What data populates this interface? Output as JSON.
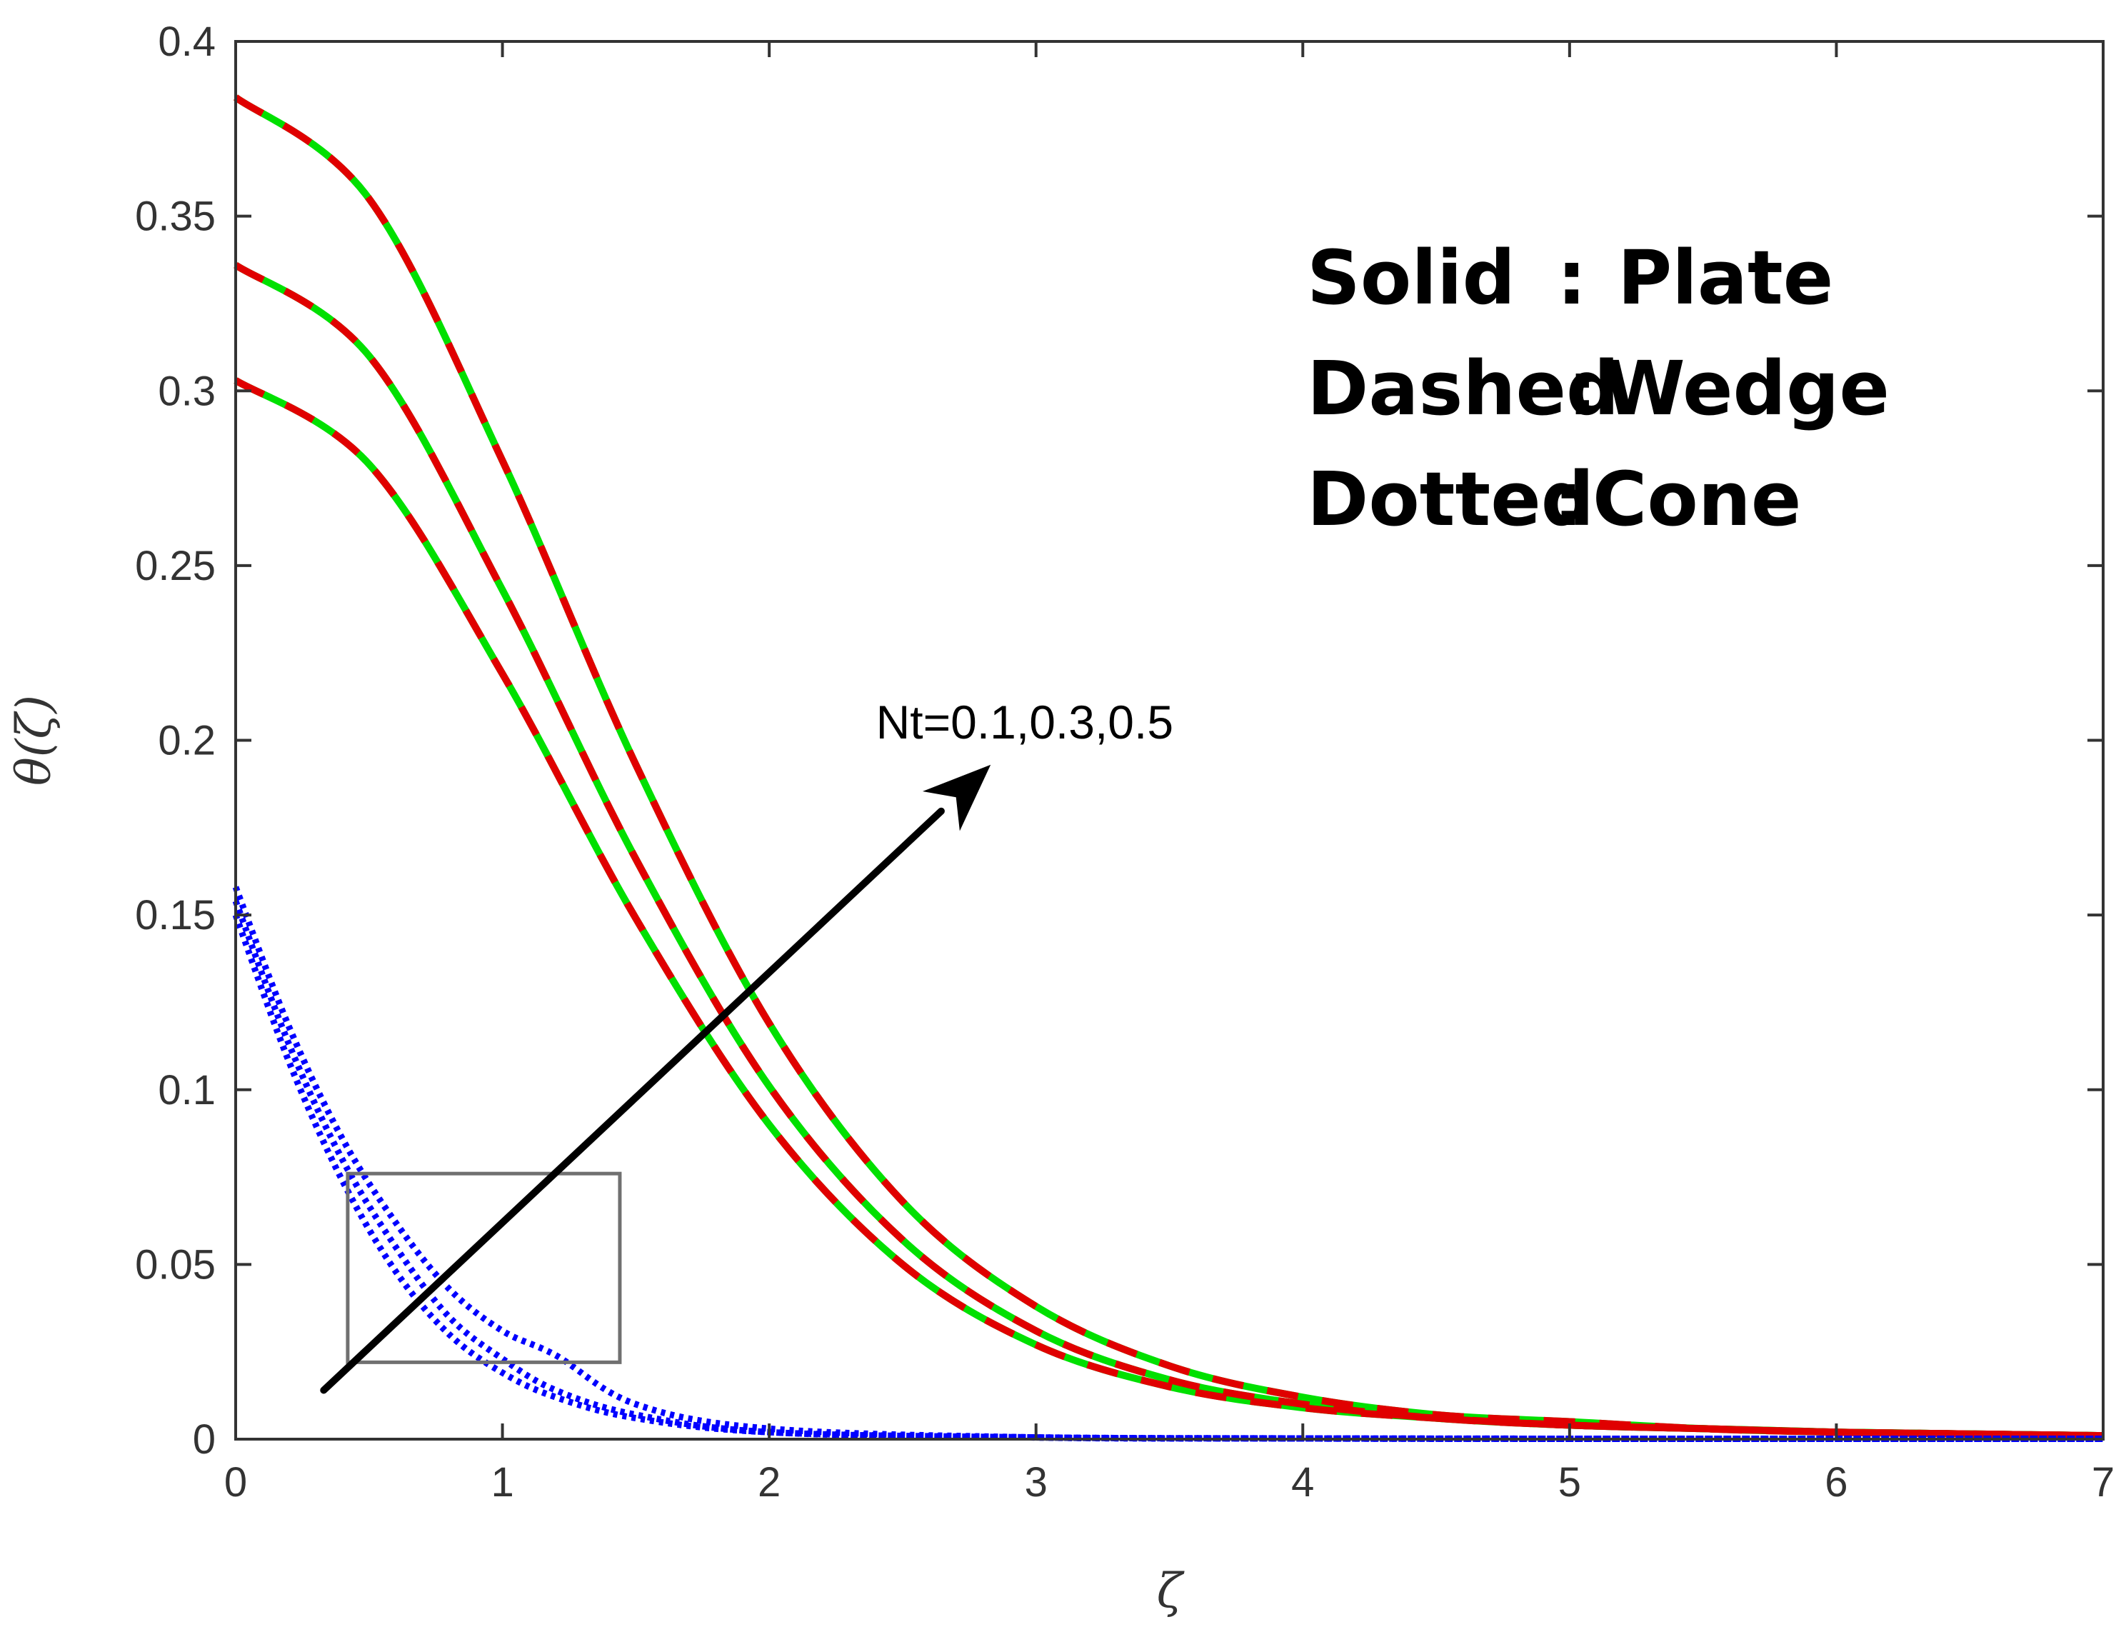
{
  "chart_data": {
    "type": "line",
    "xlabel": "ζ",
    "ylabel": "θ(ζ)",
    "xlim": [
      0,
      7
    ],
    "ylim": [
      0,
      0.4
    ],
    "x_ticks": [
      "0",
      "1",
      "2",
      "3",
      "4",
      "5",
      "6",
      "7"
    ],
    "y_ticks": [
      "0",
      "0.05",
      "0.1",
      "0.15",
      "0.2",
      "0.25",
      "0.3",
      "0.35",
      "0.4"
    ],
    "grid": false,
    "legend_text": [
      {
        "style": "Solid",
        "sep": ":",
        "geometry": "Plate"
      },
      {
        "style": "Dashed",
        "sep": ":",
        "geometry": "Wedge"
      },
      {
        "style": "Dotted",
        "sep": ":",
        "geometry": "Cone"
      }
    ],
    "annotation": "Nt=0.1,0.3,0.5",
    "colors": {
      "plate": "#00e000",
      "wedge": "#e00000",
      "cone": "#0000ff",
      "arrow": "#000000",
      "box": "#707070",
      "axis": "#333333"
    },
    "curve_x": [
      0,
      0.5,
      1,
      1.5,
      2,
      2.5,
      3,
      3.5,
      4,
      4.5,
      5,
      5.5,
      6,
      6.5,
      7
    ],
    "series": [
      {
        "geometry": "plate",
        "Nt": 0.1,
        "values": [
          0.303,
          0.279,
          0.219,
          0.149,
          0.09,
          0.05,
          0.027,
          0.015,
          0.009,
          0.006,
          0.004,
          0.003,
          0.002,
          0.0015,
          0.001
        ]
      },
      {
        "geometry": "plate",
        "Nt": 0.3,
        "values": [
          0.336,
          0.31,
          0.243,
          0.166,
          0.101,
          0.057,
          0.031,
          0.017,
          0.01,
          0.006,
          0.004,
          0.003,
          0.002,
          0.0015,
          0.001
        ]
      },
      {
        "geometry": "plate",
        "Nt": 0.5,
        "values": [
          0.384,
          0.355,
          0.28,
          0.193,
          0.119,
          0.068,
          0.038,
          0.021,
          0.012,
          0.007,
          0.005,
          0.003,
          0.002,
          0.0015,
          0.001
        ]
      },
      {
        "geometry": "wedge",
        "Nt": 0.1,
        "values": [
          0.303,
          0.279,
          0.219,
          0.149,
          0.09,
          0.05,
          0.027,
          0.015,
          0.009,
          0.006,
          0.004,
          0.003,
          0.002,
          0.0015,
          0.001
        ]
      },
      {
        "geometry": "wedge",
        "Nt": 0.3,
        "values": [
          0.336,
          0.31,
          0.243,
          0.166,
          0.101,
          0.057,
          0.031,
          0.017,
          0.01,
          0.006,
          0.004,
          0.003,
          0.002,
          0.0015,
          0.001
        ]
      },
      {
        "geometry": "wedge",
        "Nt": 0.5,
        "values": [
          0.384,
          0.355,
          0.28,
          0.193,
          0.119,
          0.068,
          0.038,
          0.021,
          0.012,
          0.007,
          0.005,
          0.003,
          0.002,
          0.0015,
          0.001
        ]
      },
      {
        "geometry": "cone",
        "Nt": 0.1,
        "x": [
          0,
          0.2,
          0.4,
          0.6,
          0.8,
          1.0,
          1.2,
          1.5,
          2,
          3,
          4,
          5,
          6,
          7
        ],
        "values": [
          0.15,
          0.108,
          0.074,
          0.048,
          0.03,
          0.019,
          0.012,
          0.006,
          0.002,
          0.0005,
          0.0002,
          0.0001,
          0.0001,
          0.0001
        ]
      },
      {
        "geometry": "cone",
        "Nt": 0.3,
        "x": [
          0,
          0.2,
          0.4,
          0.6,
          0.8,
          1.0,
          1.2,
          1.5,
          2,
          3,
          4,
          5,
          6,
          7
        ],
        "values": [
          0.154,
          0.113,
          0.08,
          0.055,
          0.035,
          0.023,
          0.014,
          0.007,
          0.002,
          0.0005,
          0.0002,
          0.0001,
          0.0001,
          0.0001
        ]
      },
      {
        "geometry": "cone",
        "Nt": 0.5,
        "x": [
          0,
          0.2,
          0.4,
          0.6,
          0.8,
          1.0,
          1.2,
          1.5,
          2,
          3,
          4,
          5,
          6,
          7
        ],
        "values": [
          0.158,
          0.118,
          0.086,
          0.062,
          0.043,
          0.031,
          0.024,
          0.01,
          0.003,
          0.0005,
          0.0002,
          0.0001,
          0.0001,
          0.0001
        ]
      }
    ],
    "inset_box": {
      "x": [
        0.42,
        1.44
      ],
      "y": [
        0.022,
        0.076
      ]
    },
    "arrow": {
      "from": [
        0.33,
        0.014
      ],
      "to": [
        2.83,
        0.193
      ]
    },
    "annotation_pos": [
      2.4,
      0.205
    ]
  }
}
